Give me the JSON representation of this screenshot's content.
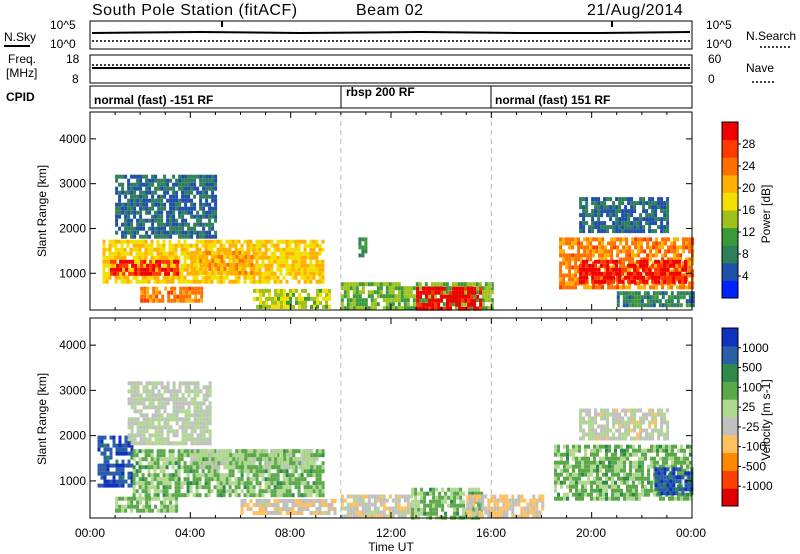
{
  "header": {
    "station": "South Pole Station (fitACF)",
    "beam": "Beam 02",
    "date": "21/Aug/2014"
  },
  "top_panels": {
    "nsky_label": "N.Sky",
    "nsky_ticks": [
      "10^5",
      "10^0"
    ],
    "nsearch_label": "N.Search",
    "freq_label": "Freq.",
    "freq_unit": "[MHz]",
    "freq_ticks": [
      "18",
      "8"
    ],
    "nave_ticks": [
      "60",
      "0"
    ],
    "nave_label": "Nave",
    "cpid_label": "CPID",
    "cpid_segments": [
      {
        "label": "normal (fast) -151 RF",
        "start_h": 0,
        "end_h": 10
      },
      {
        "label": "rbsp 200 RF",
        "start_h": 10,
        "end_h": 16
      },
      {
        "label": "normal (fast) 151 RF",
        "start_h": 16,
        "end_h": 24
      }
    ]
  },
  "colors": {
    "power": [
      "#0022ff",
      "#1f4fa8",
      "#2f7f5a",
      "#3a9a3a",
      "#9ec21a",
      "#f2e000",
      "#ffb000",
      "#ff7000",
      "#ff3a00",
      "#f00000"
    ],
    "velocity": [
      "#e00000",
      "#ff4000",
      "#ff8a00",
      "#ffc060",
      "#c0c0c0",
      "#b0d890",
      "#5aa84a",
      "#2e8a4a",
      "#2a5fa8",
      "#1030c0"
    ]
  },
  "chart_data": [
    {
      "type": "heatmap",
      "title": "",
      "xlabel": "Time UT",
      "ylabel": "Slant Range [km]",
      "xlim": [
        0,
        24
      ],
      "ylim": [
        180,
        4600
      ],
      "x_ticks": [
        "00:00",
        "04:00",
        "08:00",
        "12:00",
        "16:00",
        "20:00",
        "00:00"
      ],
      "y_ticks": [
        "1000",
        "2000",
        "3000",
        "4000"
      ],
      "colorbar_label": "Power [dB]",
      "colorbar_ticks": [
        "4",
        "8",
        "12",
        "16",
        "20",
        "24",
        "28"
      ],
      "clim": [
        0,
        30
      ],
      "regions": [
        {
          "t0": 0.5,
          "t1": 9.3,
          "r0": 800,
          "r1": 1750,
          "value": 18
        },
        {
          "t0": 0.8,
          "t1": 3.5,
          "r0": 950,
          "r1": 1300,
          "value": 27
        },
        {
          "t0": 4.0,
          "t1": 6.5,
          "r0": 1000,
          "r1": 1500,
          "value": 20
        },
        {
          "t0": 1.0,
          "t1": 5.0,
          "r0": 1800,
          "r1": 3200,
          "value": 6
        },
        {
          "t0": 2.0,
          "t1": 4.5,
          "r0": 350,
          "r1": 700,
          "value": 22
        },
        {
          "t0": 6.5,
          "t1": 9.5,
          "r0": 250,
          "r1": 650,
          "value": 14
        },
        {
          "t0": 10.0,
          "t1": 16.0,
          "r0": 200,
          "r1": 800,
          "value": 12
        },
        {
          "t0": 13.0,
          "t1": 15.6,
          "r0": 250,
          "r1": 700,
          "value": 29
        },
        {
          "t0": 10.7,
          "t1": 11.0,
          "r0": 1400,
          "r1": 1800,
          "value": 10
        },
        {
          "t0": 18.7,
          "t1": 24.0,
          "r0": 700,
          "r1": 1800,
          "value": 22
        },
        {
          "t0": 19.5,
          "t1": 23.8,
          "r0": 800,
          "r1": 1300,
          "value": 28
        },
        {
          "t0": 19.5,
          "t1": 23.0,
          "r0": 1900,
          "r1": 2700,
          "value": 6
        },
        {
          "t0": 21.0,
          "t1": 24.0,
          "r0": 300,
          "r1": 600,
          "value": 8
        }
      ]
    },
    {
      "type": "heatmap",
      "title": "",
      "xlabel": "Time UT",
      "ylabel": "Slant Range [km]",
      "xlim": [
        0,
        24
      ],
      "ylim": [
        180,
        4600
      ],
      "x_ticks": [
        "00:00",
        "04:00",
        "08:00",
        "12:00",
        "16:00",
        "20:00",
        "00:00"
      ],
      "y_ticks": [
        "1000",
        "2000",
        "3000",
        "4000"
      ],
      "colorbar_label": "Velocity [m s-1]",
      "colorbar_ticks": [
        "-1000",
        "-500",
        "-100",
        "-25",
        "25",
        "100",
        "500",
        "1000"
      ],
      "clim": [
        -1200,
        1200
      ],
      "regions": [
        {
          "t0": 0.3,
          "t1": 1.7,
          "r0": 900,
          "r1": 2000,
          "value": 900
        },
        {
          "t0": 1.7,
          "t1": 9.3,
          "r0": 700,
          "r1": 1700,
          "value": 300
        },
        {
          "t0": 1.5,
          "t1": 4.8,
          "r0": 1800,
          "r1": 3200,
          "value": 0
        },
        {
          "t0": 4.0,
          "t1": 9.0,
          "r0": 1300,
          "r1": 1700,
          "value": 150
        },
        {
          "t0": 1.0,
          "t1": 3.5,
          "r0": 300,
          "r1": 650,
          "value": 250
        },
        {
          "t0": 6.0,
          "t1": 9.8,
          "r0": 250,
          "r1": 600,
          "value": -200
        },
        {
          "t0": 10.0,
          "t1": 12.8,
          "r0": 200,
          "r1": 700,
          "value": -150
        },
        {
          "t0": 12.8,
          "t1": 15.6,
          "r0": 200,
          "r1": 850,
          "value": 300
        },
        {
          "t0": 15.0,
          "t1": 18.0,
          "r0": 200,
          "r1": 700,
          "value": -250
        },
        {
          "t0": 18.5,
          "t1": 24.0,
          "r0": 600,
          "r1": 1800,
          "value": 300
        },
        {
          "t0": 22.5,
          "t1": 24.0,
          "r0": 700,
          "r1": 1300,
          "value": 900
        },
        {
          "t0": 19.5,
          "t1": 23.0,
          "r0": 1900,
          "r1": 2600,
          "value": -60
        }
      ]
    }
  ]
}
